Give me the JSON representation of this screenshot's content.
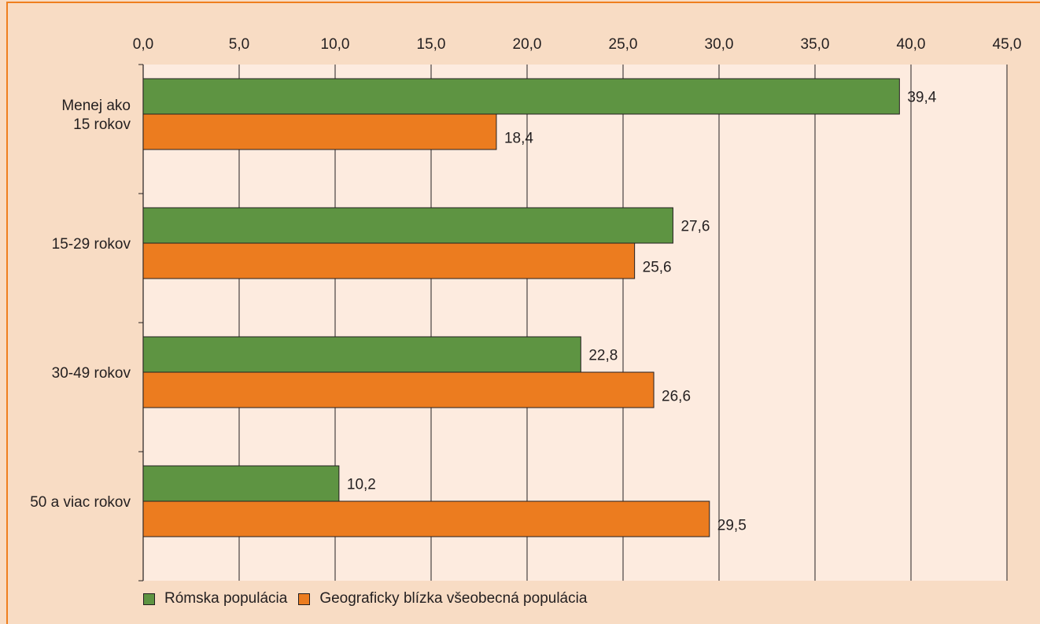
{
  "chart_data": {
    "type": "bar",
    "orientation": "horizontal",
    "categories": [
      [
        "Menej ako",
        "15 rokov"
      ],
      [
        "15-29 rokov"
      ],
      [
        "30-49 rokov"
      ],
      [
        "50 a viac rokov"
      ]
    ],
    "series": [
      {
        "name": "Rómska populácia",
        "values": [
          39.4,
          27.6,
          22.8,
          10.2
        ],
        "labels": [
          "39,4",
          "27,6",
          "22,8",
          "10,2"
        ],
        "color": "#5e9442"
      },
      {
        "name": "Geograficky blízka všeobecná populácia",
        "values": [
          18.4,
          25.6,
          26.6,
          29.5
        ],
        "labels": [
          "18,4",
          "25,6",
          "26,6",
          "29,5"
        ],
        "color": "#ec7c1f"
      }
    ],
    "xlim": [
      0,
      45
    ],
    "xticks": [
      0,
      5,
      10,
      15,
      20,
      25,
      30,
      35,
      40,
      45
    ],
    "xtick_labels": [
      "0,0",
      "5,0",
      "10,0",
      "15,0",
      "20,0",
      "25,0",
      "30,0",
      "35,0",
      "40,0",
      "45,0"
    ],
    "x_axis_position": "top",
    "grid": "vertical",
    "legend_position": "bottom-left",
    "plot_background": "#fdebdf",
    "page_background": "#f8dcc4",
    "frame_color": "#ef7f1f"
  }
}
